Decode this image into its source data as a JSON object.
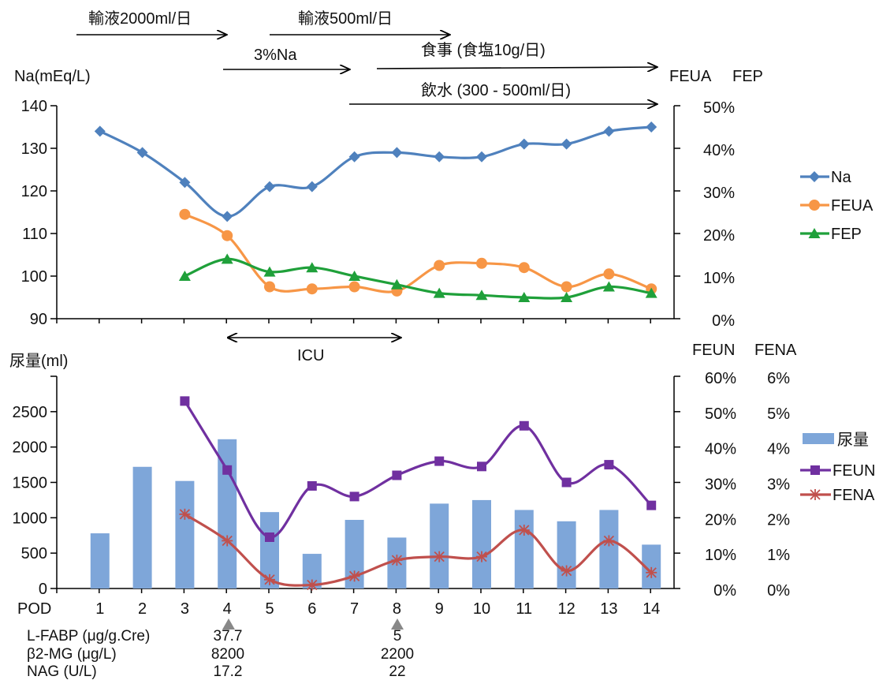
{
  "colors": {
    "na": "#4F81BD",
    "feua": "#F79646",
    "fep": "#1FA03A",
    "urine_bar": "#7EA6D9",
    "feun": "#7030A0",
    "fena": "#C0504D",
    "axis": "#000000"
  },
  "annotations": {
    "infusion_2000": "輸液2000ml/日",
    "infusion_500": "輸液500ml/日",
    "na3": "3%Na",
    "meal": "食事 (食塩10g/日)",
    "water": "飲水 (300 - 500ml/日)",
    "icu": "ICU"
  },
  "x_axis": {
    "label": "POD",
    "ticks": [
      "1",
      "2",
      "3",
      "4",
      "5",
      "6",
      "7",
      "8",
      "9",
      "10",
      "11",
      "12",
      "13",
      "14"
    ]
  },
  "biomarkers": {
    "lfabp": {
      "label": "L-FABP (μg/g.Cre)",
      "pod4": "37.7",
      "pod8": "5"
    },
    "b2mg": {
      "label": "β2-MG (μg/L)",
      "pod4": "8200",
      "pod8": "2200"
    },
    "nag": {
      "label": "NAG (U/L)",
      "pod4": "17.2",
      "pod8": "22"
    }
  },
  "chart_data": [
    {
      "type": "line",
      "title": "",
      "x": [
        1,
        2,
        3,
        4,
        5,
        6,
        7,
        8,
        9,
        10,
        11,
        12,
        13,
        14
      ],
      "ylabel": "Na(mEq/L)",
      "ylim": [
        90,
        140
      ],
      "yticks": [
        "90",
        "100",
        "110",
        "120",
        "130",
        "140"
      ],
      "y2label_a": "FEUA",
      "y2label_b": "FEP",
      "y2lim": [
        0,
        50
      ],
      "y2ticks": [
        "0%",
        "10%",
        "20%",
        "30%",
        "40%",
        "50%"
      ],
      "legend_position": "right",
      "series": [
        {
          "name": "Na",
          "axis": "left",
          "marker": "diamond",
          "x": [
            1,
            2,
            3,
            4,
            5,
            6,
            7,
            8,
            9,
            10,
            11,
            12,
            13,
            14
          ],
          "values": [
            134,
            129,
            122,
            114,
            121,
            121,
            128,
            129,
            128,
            128,
            131,
            131,
            134,
            135
          ]
        },
        {
          "name": "FEUA",
          "axis": "right",
          "marker": "circle",
          "x": [
            3,
            4,
            5,
            6,
            7,
            8,
            9,
            10,
            11,
            12,
            13,
            14
          ],
          "values": [
            24.5,
            19.5,
            7.5,
            7,
            7.5,
            6.5,
            12.5,
            13,
            12,
            7.5,
            10.5,
            7
          ]
        },
        {
          "name": "FEP",
          "axis": "right",
          "marker": "triangle",
          "x": [
            3,
            4,
            5,
            6,
            7,
            8,
            9,
            10,
            11,
            12,
            13,
            14
          ],
          "values": [
            10,
            14,
            11,
            12,
            10,
            8,
            6,
            5.5,
            5,
            5,
            7.5,
            6
          ]
        }
      ]
    },
    {
      "type": "bar",
      "title": "",
      "x": [
        1,
        2,
        3,
        4,
        5,
        6,
        7,
        8,
        9,
        10,
        11,
        12,
        13,
        14
      ],
      "ylabel": "尿量(ml)",
      "ylim": [
        0,
        3000
      ],
      "yticks": [
        "0",
        "500",
        "1000",
        "1500",
        "2000",
        "2500"
      ],
      "y2label_a": "FEUN",
      "y2label_b": "FENA",
      "y2lim": [
        0,
        60
      ],
      "y2ticks": [
        "0%",
        "10%",
        "20%",
        "30%",
        "40%",
        "50%",
        "60%"
      ],
      "y3lim": [
        0,
        6
      ],
      "y3ticks": [
        "0%",
        "1%",
        "2%",
        "3%",
        "4%",
        "5%",
        "6%"
      ],
      "legend_position": "right",
      "series": [
        {
          "name": "尿量",
          "axis": "left",
          "kind": "bar",
          "x": [
            1,
            2,
            3,
            4,
            5,
            6,
            7,
            8,
            9,
            10,
            11,
            12,
            13,
            14
          ],
          "values": [
            780,
            1720,
            1520,
            2110,
            1080,
            490,
            970,
            720,
            1200,
            1250,
            1110,
            950,
            1110,
            620
          ]
        },
        {
          "name": "FEUN",
          "axis": "right",
          "kind": "line",
          "marker": "square",
          "x": [
            3,
            4,
            5,
            6,
            7,
            8,
            9,
            10,
            11,
            12,
            13,
            14
          ],
          "values": [
            53,
            33.5,
            14.5,
            29,
            26,
            32,
            36,
            34.5,
            46,
            30,
            35,
            23.5
          ]
        },
        {
          "name": "FENA",
          "axis": "right2",
          "kind": "line",
          "marker": "asterisk",
          "x": [
            3,
            4,
            5,
            6,
            7,
            8,
            9,
            10,
            11,
            12,
            13,
            14
          ],
          "values": [
            2.1,
            1.35,
            0.25,
            0.1,
            0.35,
            0.8,
            0.9,
            0.9,
            1.65,
            0.5,
            1.35,
            0.45
          ]
        }
      ]
    }
  ]
}
